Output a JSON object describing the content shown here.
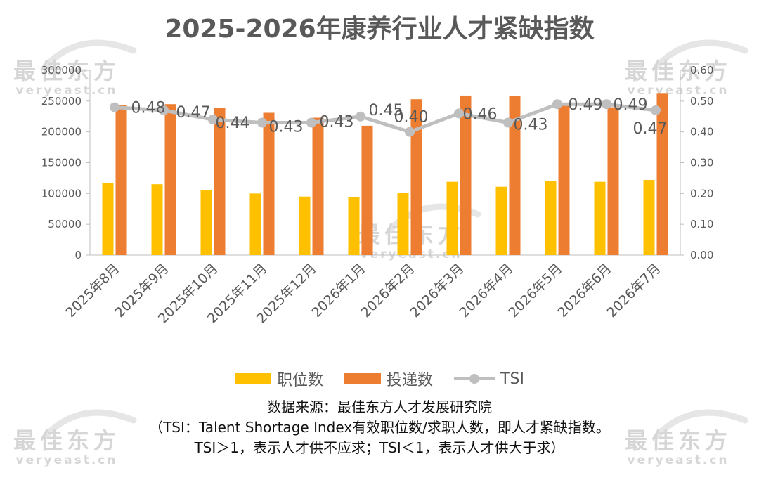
{
  "chart_data": {
    "type": "bar",
    "title": "2025-2026年康养行业人才紧缺指数",
    "categories": [
      "2025年8月",
      "2025年9月",
      "2025年10月",
      "2025年11月",
      "2025年12月",
      "2026年1月",
      "2026年2月",
      "2026年3月",
      "2026年4月",
      "2026年5月",
      "2026年6月",
      "2026年7月"
    ],
    "series": [
      {
        "name": "职位数",
        "type": "bar",
        "axis": "left",
        "color": "#ffc000",
        "values": [
          117000,
          115000,
          105000,
          100000,
          95000,
          94000,
          101000,
          119000,
          111000,
          120000,
          119000,
          122000
        ]
      },
      {
        "name": "投递数",
        "type": "bar",
        "axis": "left",
        "color": "#ed7d31",
        "values": [
          243000,
          245000,
          239000,
          231000,
          223000,
          210000,
          253000,
          259000,
          258000,
          243000,
          240000,
          262000
        ]
      },
      {
        "name": "TSI",
        "type": "line",
        "axis": "right",
        "color": "#bfbfbf",
        "values": [
          0.48,
          0.47,
          0.44,
          0.43,
          0.43,
          0.45,
          0.4,
          0.46,
          0.43,
          0.49,
          0.49,
          0.47
        ],
        "labels": [
          "0.48",
          "0.47",
          "0.44",
          "0.43",
          "0.43",
          "0.45",
          "0.40",
          "0.46",
          "0.43",
          "0.49",
          "0.49",
          "0.47"
        ]
      }
    ],
    "ylim_left": [
      0,
      300000
    ],
    "yticks_left": [
      "0",
      "50000",
      "100000",
      "150000",
      "200000",
      "250000",
      "300000"
    ],
    "ylim_right": [
      0,
      0.6
    ],
    "yticks_right": [
      "0.00",
      "0.10",
      "0.20",
      "0.30",
      "0.40",
      "0.50",
      "0.60"
    ],
    "legend": "bottom",
    "grid": false
  },
  "watermark": {
    "cn": "最佳东方",
    "en": "veryeast.cn"
  },
  "footnote": {
    "line1": "数据来源：最佳东方人才发展研究院",
    "line2": "（TSI：Talent Shortage Index有效职位数/求职人数，即人才紧缺指数。",
    "line3": "TSI＞1，表示人才供不应求；TSI＜1，表示人才供大于求）"
  }
}
